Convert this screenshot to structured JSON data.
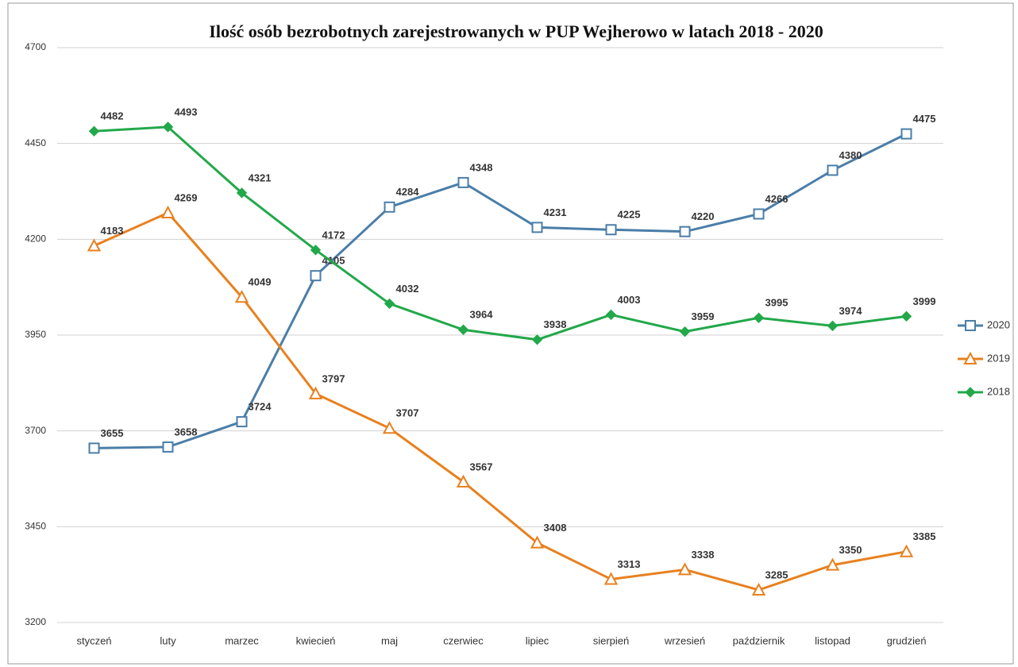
{
  "chart_data": {
    "type": "line",
    "title": "Ilość osób bezrobotnych zarejestrowanych  w PUP Wejherowo  w latach 2018 - 2020",
    "categories": [
      "styczeń",
      "luty",
      "marzec",
      "kwiecień",
      "maj",
      "czerwiec",
      "lipiec",
      "sierpień",
      "wrzesień",
      "październik",
      "listopad",
      "grudzień"
    ],
    "series": [
      {
        "name": "2020",
        "color": "#4a7ea8",
        "marker": "square",
        "values": [
          3655,
          3658,
          3724,
          4105,
          4284,
          4348,
          4231,
          4225,
          4220,
          4266,
          4380,
          4475
        ]
      },
      {
        "name": "2019",
        "color": "#e8801e",
        "marker": "triangle",
        "values": [
          4183,
          4269,
          4049,
          3797,
          3707,
          3567,
          3408,
          3313,
          3338,
          3285,
          3350,
          3385
        ]
      },
      {
        "name": "2018",
        "color": "#22a84a",
        "marker": "diamond",
        "values": [
          4482,
          4493,
          4321,
          4172,
          4032,
          3964,
          3938,
          4003,
          3959,
          3995,
          3974,
          3999
        ]
      }
    ],
    "ylim": [
      3200,
      4700
    ],
    "yticks": [
      3200,
      3450,
      3700,
      3950,
      4200,
      4450,
      4700
    ],
    "grid": true,
    "legend": "right"
  }
}
